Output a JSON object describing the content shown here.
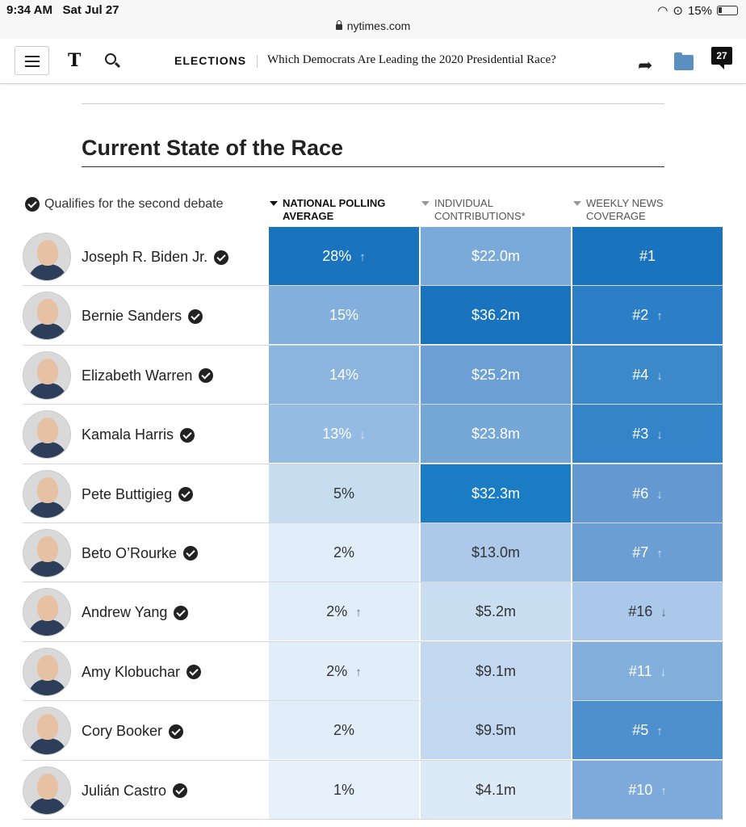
{
  "status_bar": {
    "time": "9:34 AM",
    "date": "Sat Jul 27",
    "battery": "15%"
  },
  "address_bar": {
    "url": "nytimes.com"
  },
  "nav": {
    "section": "ELECTIONS",
    "headline": "Which Democrats Are Leading the 2020 Presidential Race?",
    "comments_count": "27"
  },
  "page": {
    "title": "Current State of the Race",
    "legend": "Qualifies for the second debate"
  },
  "columns": [
    {
      "line1": "National Polling",
      "line2": "Average",
      "active": true
    },
    {
      "line1": "Individual",
      "line2": "Contributions*",
      "active": false
    },
    {
      "line1": "Weekly News",
      "line2": "Coverage",
      "active": false
    }
  ],
  "candidates": [
    {
      "name": "Joseph R. Biden Jr.",
      "qualifies": true,
      "polling": "28%",
      "polling_trend": "up",
      "contributions": "$22.0m",
      "news": "#1",
      "news_trend": "",
      "polling_bg": "#1a74bd",
      "contrib_bg": "#7aaad9",
      "news_bg": "#1a74bd"
    },
    {
      "name": "Bernie Sanders",
      "qualifies": true,
      "polling": "15%",
      "polling_trend": "",
      "contributions": "$36.2m",
      "news": "#2",
      "news_trend": "up",
      "polling_bg": "#82afdc",
      "contrib_bg": "#1a74bd",
      "news_bg": "#2c7fc6"
    },
    {
      "name": "Elizabeth Warren",
      "qualifies": true,
      "polling": "14%",
      "polling_trend": "",
      "contributions": "$25.2m",
      "news": "#4",
      "news_trend": "down",
      "polling_bg": "#8bb5de",
      "contrib_bg": "#6c9fd4",
      "news_bg": "#3d88c9"
    },
    {
      "name": "Kamala Harris",
      "qualifies": true,
      "polling": "13%",
      "polling_trend": "down",
      "contributions": "$23.8m",
      "news": "#3",
      "news_trend": "down",
      "polling_bg": "#94bbe1",
      "contrib_bg": "#75a7d7",
      "news_bg": "#3384c8"
    },
    {
      "name": "Pete Buttigieg",
      "qualifies": true,
      "polling": "5%",
      "polling_trend": "",
      "contributions": "$32.3m",
      "news": "#6",
      "news_trend": "down",
      "polling_bg": "#c8dcf0",
      "contrib_bg": "#1a7cc4",
      "news_bg": "#6399d0"
    },
    {
      "name": "Beto O’Rourke",
      "qualifies": true,
      "polling": "2%",
      "polling_trend": "",
      "contributions": "$13.0m",
      "news": "#7",
      "news_trend": "up",
      "polling_bg": "#e1edf8",
      "contrib_bg": "#acc9ea",
      "news_bg": "#6b9ed3"
    },
    {
      "name": "Andrew Yang",
      "qualifies": true,
      "polling": "2%",
      "polling_trend": "up",
      "contributions": "$5.2m",
      "news": "#16",
      "news_trend": "down",
      "polling_bg": "#e1edf8",
      "contrib_bg": "#cadef2",
      "news_bg": "#aac8ea"
    },
    {
      "name": "Amy Klobuchar",
      "qualifies": true,
      "polling": "2%",
      "polling_trend": "up",
      "contributions": "$9.1m",
      "news": "#11",
      "news_trend": "down",
      "polling_bg": "#e1edf8",
      "contrib_bg": "#c1d8f0",
      "news_bg": "#82afdc"
    },
    {
      "name": "Cory Booker",
      "qualifies": true,
      "polling": "2%",
      "polling_trend": "",
      "contributions": "$9.5m",
      "news": "#5",
      "news_trend": "up",
      "polling_bg": "#e1edf8",
      "contrib_bg": "#c1d8f0",
      "news_bg": "#4e8fcd"
    },
    {
      "name": "Julián Castro",
      "qualifies": true,
      "polling": "1%",
      "polling_trend": "",
      "contributions": "$4.1m",
      "news": "#10",
      "news_trend": "up",
      "polling_bg": "#e6f0fa",
      "contrib_bg": "#dce9f7",
      "news_bg": "#7eaadb"
    }
  ]
}
